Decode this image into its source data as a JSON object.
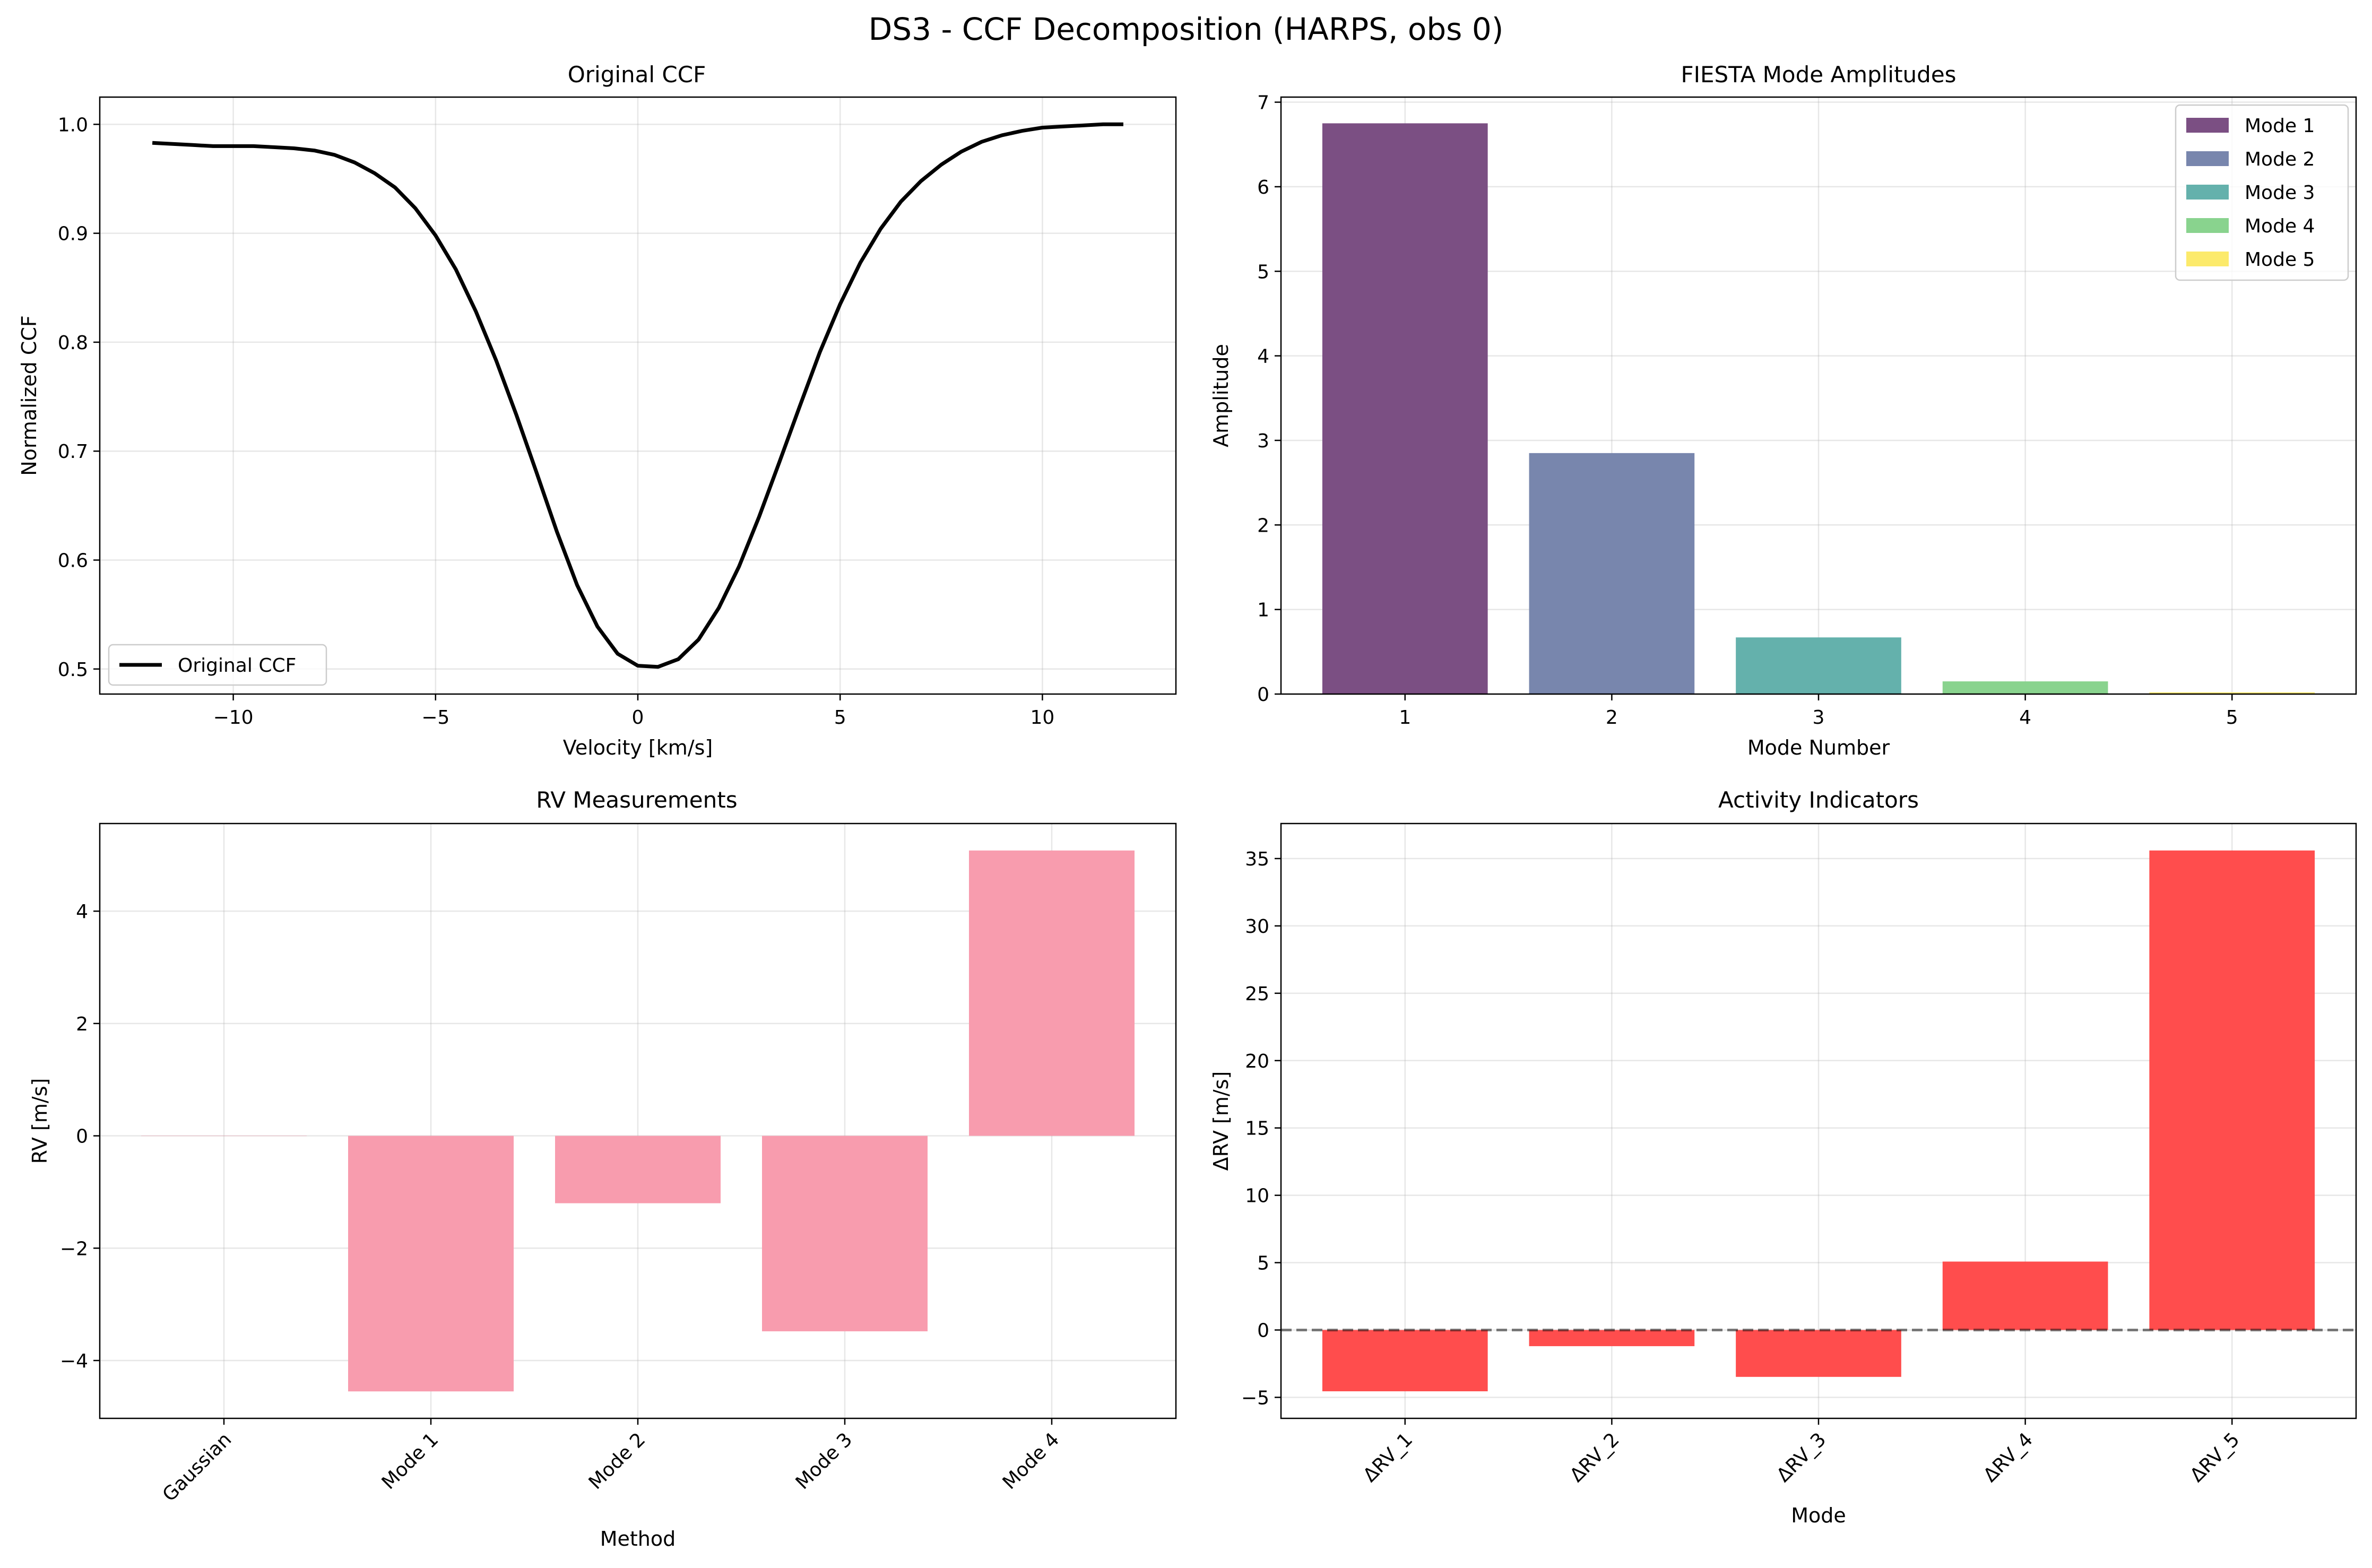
{
  "figure": {
    "suptitle": "DS3 - CCF Decomposition (HARPS, obs 0)"
  },
  "chart_data": [
    {
      "id": "ccf",
      "type": "line",
      "title": "Original CCF",
      "xlabel": "Velocity [km/s]",
      "ylabel": "Normalized CCF",
      "xlim": [
        -13.3,
        13.3
      ],
      "ylim": [
        0.477,
        1.025
      ],
      "xticks": [
        -10,
        -5,
        0,
        5,
        10
      ],
      "xtick_labels": [
        "−10",
        "−5",
        "0",
        "5",
        "10"
      ],
      "yticks": [
        0.5,
        0.6,
        0.7,
        0.8,
        0.9,
        1.0
      ],
      "ytick_labels": [
        "0.5",
        "0.6",
        "0.7",
        "0.8",
        "0.9",
        "1.0"
      ],
      "grid": true,
      "legend": {
        "position": "lower-left",
        "entries": [
          {
            "label": "Original CCF",
            "color": "#000000"
          }
        ]
      },
      "series": [
        {
          "name": "Original CCF",
          "color": "#000000",
          "x": [
            -12.0,
            -11.5,
            -11.0,
            -10.5,
            -10.0,
            -9.5,
            -9.0,
            -8.5,
            -8.0,
            -7.5,
            -7.0,
            -6.5,
            -6.0,
            -5.5,
            -5.0,
            -4.5,
            -4.0,
            -3.5,
            -3.0,
            -2.5,
            -2.0,
            -1.5,
            -1.0,
            -0.5,
            0.0,
            0.5,
            1.0,
            1.5,
            2.0,
            2.5,
            3.0,
            3.5,
            4.0,
            4.5,
            5.0,
            5.5,
            6.0,
            6.5,
            7.0,
            7.5,
            8.0,
            8.5,
            9.0,
            9.5,
            10.0,
            10.5,
            11.0,
            11.5,
            12.0
          ],
          "y": [
            0.983,
            0.982,
            0.981,
            0.98,
            0.98,
            0.98,
            0.979,
            0.978,
            0.976,
            0.972,
            0.965,
            0.955,
            0.942,
            0.923,
            0.898,
            0.867,
            0.828,
            0.783,
            0.733,
            0.68,
            0.626,
            0.577,
            0.539,
            0.514,
            0.503,
            0.502,
            0.509,
            0.527,
            0.556,
            0.594,
            0.64,
            0.69,
            0.741,
            0.791,
            0.835,
            0.873,
            0.904,
            0.929,
            0.948,
            0.963,
            0.975,
            0.984,
            0.99,
            0.994,
            0.997,
            0.998,
            0.999,
            1.0,
            1.0
          ]
        }
      ]
    },
    {
      "id": "fiesta",
      "type": "bar",
      "title": "FIESTA Mode Amplitudes",
      "xlabel": "Mode Number",
      "ylabel": "Amplitude",
      "categories": [
        "1",
        "2",
        "3",
        "4",
        "5"
      ],
      "values": [
        6.75,
        2.85,
        0.67,
        0.15,
        0.02
      ],
      "colors": [
        "#7b4f83",
        "#7886ad",
        "#64b1ac",
        "#89d38e",
        "#fcea6b"
      ],
      "ylim": [
        0,
        7.06
      ],
      "yticks": [
        0,
        1,
        2,
        3,
        4,
        5,
        6,
        7
      ],
      "ytick_labels": [
        "0",
        "1",
        "2",
        "3",
        "4",
        "5",
        "6",
        "7"
      ],
      "grid": true,
      "legend": {
        "position": "top-right",
        "entries": [
          {
            "label": "Mode 1",
            "color": "#7b4f83"
          },
          {
            "label": "Mode 2",
            "color": "#7886ad"
          },
          {
            "label": "Mode 3",
            "color": "#64b1ac"
          },
          {
            "label": "Mode 4",
            "color": "#89d38e"
          },
          {
            "label": "Mode 5",
            "color": "#fcea6b"
          }
        ]
      }
    },
    {
      "id": "rv",
      "type": "bar",
      "title": "RV Measurements",
      "xlabel": "Method",
      "ylabel": "RV [m/s]",
      "categories": [
        "Gaussian",
        "Mode 1",
        "Mode 2",
        "Mode 3",
        "Mode 4"
      ],
      "values": [
        0.0,
        -4.55,
        -1.2,
        -3.48,
        5.08
      ],
      "color": "#f89cae",
      "ylim": [
        -5.03,
        5.56
      ],
      "yticks": [
        -4,
        -2,
        0,
        2,
        4
      ],
      "ytick_labels": [
        "−4",
        "−2",
        "0",
        "2",
        "4"
      ],
      "grid": true
    },
    {
      "id": "activity",
      "type": "bar",
      "title": "Activity Indicators",
      "xlabel": "Mode",
      "ylabel": "ΔRV [m/s]",
      "categories": [
        "ΔRV_1",
        "ΔRV_2",
        "ΔRV_3",
        "ΔRV_4",
        "ΔRV_5"
      ],
      "values": [
        -4.55,
        -1.2,
        -3.48,
        5.08,
        35.6
      ],
      "color": "#ff4d4d",
      "ylim": [
        -6.56,
        37.6
      ],
      "yticks": [
        -5,
        0,
        5,
        10,
        15,
        20,
        25,
        30,
        35
      ],
      "ytick_labels": [
        "−5",
        "0",
        "5",
        "10",
        "15",
        "20",
        "25",
        "30",
        "35"
      ],
      "zero_line": true,
      "grid": true
    }
  ]
}
